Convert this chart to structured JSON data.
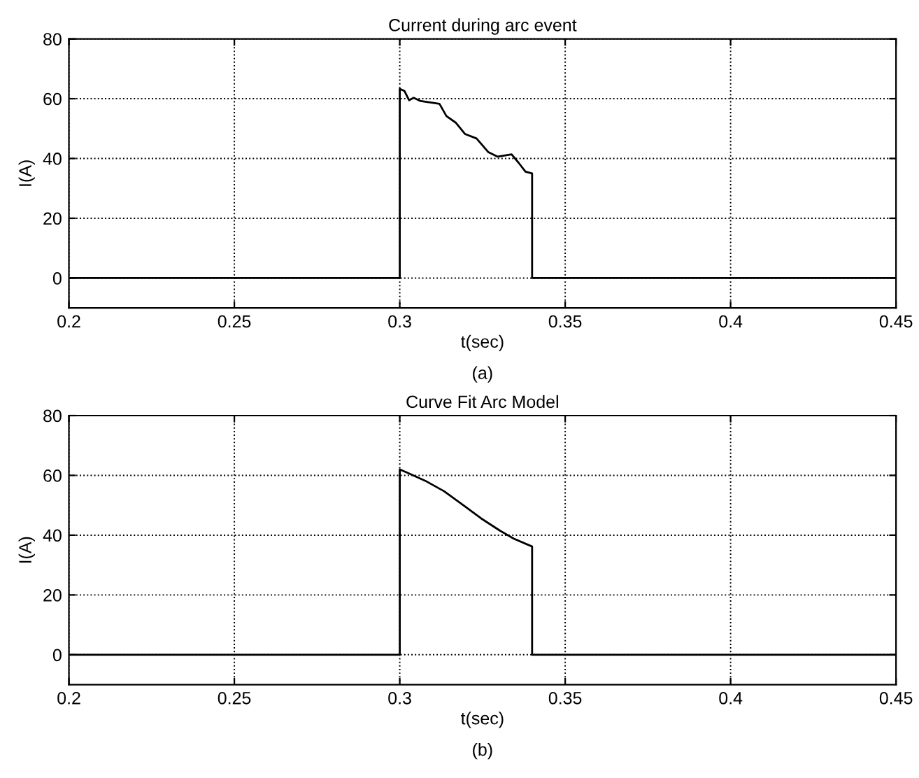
{
  "chart_data": [
    {
      "type": "line",
      "title": "Current during arc event",
      "xlabel": "t(sec)",
      "ylabel": "I(A)",
      "annotations": [
        "(a)"
      ],
      "xlim": [
        0.2,
        0.45
      ],
      "xticks": [
        0.2,
        0.25,
        0.3,
        0.35,
        0.4,
        0.45
      ],
      "ylim": [
        -10,
        80
      ],
      "yticks": [
        0,
        20,
        40,
        60,
        80
      ],
      "grid": true,
      "series": [
        {
          "color": "#000000",
          "x": [
            0.2,
            0.3,
            0.3,
            0.3014,
            0.3028,
            0.3042,
            0.3063,
            0.312,
            0.3141,
            0.3169,
            0.3197,
            0.3232,
            0.3268,
            0.3296,
            0.3338,
            0.3359,
            0.338,
            0.34,
            0.34,
            0.45
          ],
          "values": [
            0,
            0,
            63.3,
            62.6,
            59.5,
            60.3,
            59.2,
            58.3,
            54.2,
            52,
            48.2,
            46.7,
            42.1,
            40.6,
            41.4,
            38.6,
            35.6,
            35,
            0,
            0
          ]
        }
      ]
    },
    {
      "type": "line",
      "title": "Curve Fit Arc Model",
      "xlabel": "t(sec)",
      "ylabel": "I(A)",
      "annotations": [
        "(b)"
      ],
      "xlim": [
        0.2,
        0.45
      ],
      "xticks": [
        0.2,
        0.25,
        0.3,
        0.35,
        0.4,
        0.45
      ],
      "ylim": [
        -10,
        80
      ],
      "yticks": [
        0,
        20,
        40,
        60,
        80
      ],
      "grid": true,
      "series": [
        {
          "color": "#000000",
          "x": [
            0.2,
            0.3,
            0.3,
            0.3021,
            0.3077,
            0.3134,
            0.319,
            0.3246,
            0.3303,
            0.3345,
            0.34,
            0.34,
            0.45
          ],
          "values": [
            0,
            0,
            62,
            61,
            58.2,
            54.7,
            50.2,
            45.6,
            41.5,
            38.8,
            36.2,
            0,
            0
          ]
        }
      ]
    }
  ]
}
